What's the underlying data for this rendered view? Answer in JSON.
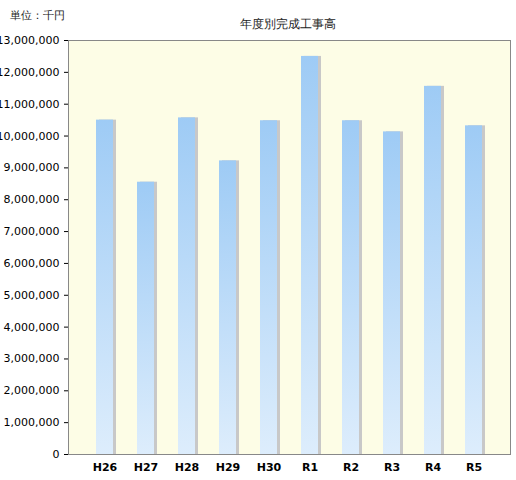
{
  "chart_data": {
    "type": "bar",
    "title": "年度別完成工事高",
    "ylabel": "単位：千円",
    "categories": [
      "H26",
      "H27",
      "H28",
      "H29",
      "H30",
      "R1",
      "R2",
      "R3",
      "R4",
      "R5"
    ],
    "values": [
      10500000,
      8550000,
      10570000,
      9220000,
      10480000,
      12500000,
      10480000,
      10130000,
      11560000,
      10320000
    ],
    "color": "#9ecbf5",
    "ylim": [
      0,
      13000000
    ],
    "yticks": [
      {
        "value": 0,
        "label": "0"
      },
      {
        "value": 1000000,
        "label": "1,000,000"
      },
      {
        "value": 2000000,
        "label": "2,000,000"
      },
      {
        "value": 3000000,
        "label": "3,000,000"
      },
      {
        "value": 4000000,
        "label": "4,000,000"
      },
      {
        "value": 5000000,
        "label": "5,000,000"
      },
      {
        "value": 6000000,
        "label": "6,000,000"
      },
      {
        "value": 7000000,
        "label": "7,000,000"
      },
      {
        "value": 8000000,
        "label": "8,000,000"
      },
      {
        "value": 9000000,
        "label": "9,000,000"
      },
      {
        "value": 10000000,
        "label": "10,000,000"
      },
      {
        "value": 11000000,
        "label": "11,000,000"
      },
      {
        "value": 12000000,
        "label": "12,000,000"
      },
      {
        "value": 13000000,
        "label": "13,000,000"
      }
    ],
    "grid": false
  }
}
